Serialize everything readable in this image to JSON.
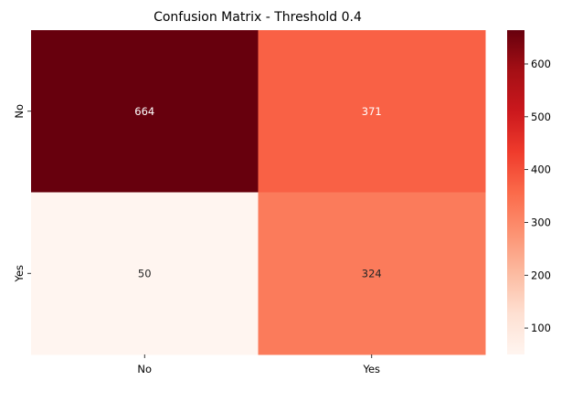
{
  "chart_data": {
    "type": "heatmap",
    "title": "Confusion Matrix - Threshold 0.4",
    "xlabel": "",
    "ylabel": "",
    "x_categories": [
      "No",
      "Yes"
    ],
    "y_categories": [
      "No",
      "Yes"
    ],
    "values": [
      [
        664,
        371
      ],
      [
        50,
        324
      ]
    ],
    "colormap": "Reds",
    "color_range": [
      50,
      664
    ],
    "colorbar_ticks": [
      100,
      200,
      300,
      400,
      500,
      600
    ],
    "grid": false
  }
}
